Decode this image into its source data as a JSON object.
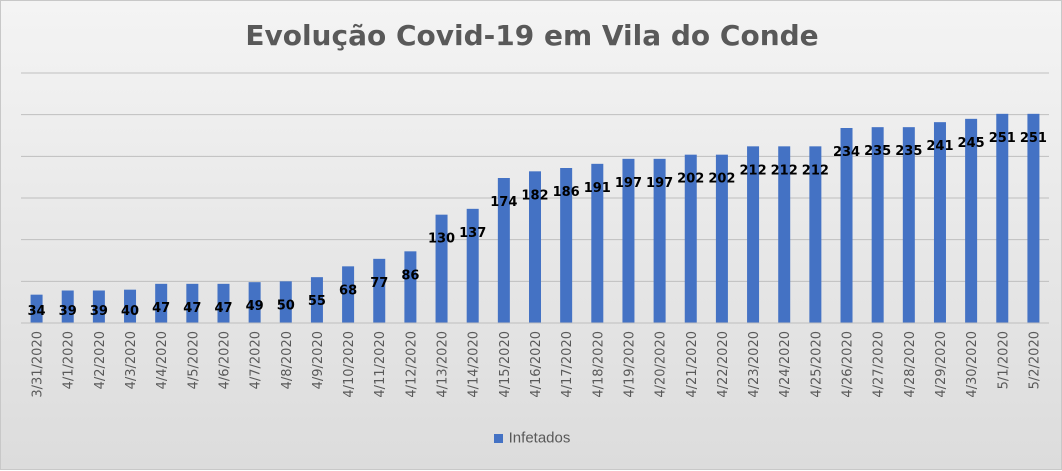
{
  "colors": {
    "bar": "#4472c4",
    "grid": "#bfbfbf",
    "text": "#000000",
    "axis_text": "#595959"
  },
  "chart_data": {
    "type": "bar",
    "title": "Evolução Covid-19 em Vila do Conde",
    "xlabel": "",
    "ylabel": "",
    "ylim": [
      0,
      300
    ],
    "y_gridlines": [
      0,
      50,
      100,
      150,
      200,
      250,
      300
    ],
    "y_tick_labels_visible": false,
    "grid": true,
    "legend_position": "bottom",
    "categories": [
      "3/31/2020",
      "4/1/2020",
      "4/2/2020",
      "4/3/2020",
      "4/4/2020",
      "4/5/2020",
      "4/6/2020",
      "4/7/2020",
      "4/8/2020",
      "4/9/2020",
      "4/10/2020",
      "4/11/2020",
      "4/12/2020",
      "4/13/2020",
      "4/14/2020",
      "4/15/2020",
      "4/16/2020",
      "4/17/2020",
      "4/18/2020",
      "4/19/2020",
      "4/20/2020",
      "4/21/2020",
      "4/22/2020",
      "4/23/2020",
      "4/24/2020",
      "4/25/2020",
      "4/26/2020",
      "4/27/2020",
      "4/28/2020",
      "4/29/2020",
      "4/30/2020",
      "5/1/2020",
      "5/2/2020"
    ],
    "series": [
      {
        "name": "Infetados",
        "values": [
          34,
          39,
          39,
          40,
          47,
          47,
          47,
          49,
          50,
          55,
          68,
          77,
          86,
          130,
          137,
          174,
          182,
          186,
          191,
          197,
          197,
          202,
          202,
          212,
          212,
          212,
          234,
          235,
          235,
          241,
          245,
          251,
          251
        ]
      }
    ]
  }
}
